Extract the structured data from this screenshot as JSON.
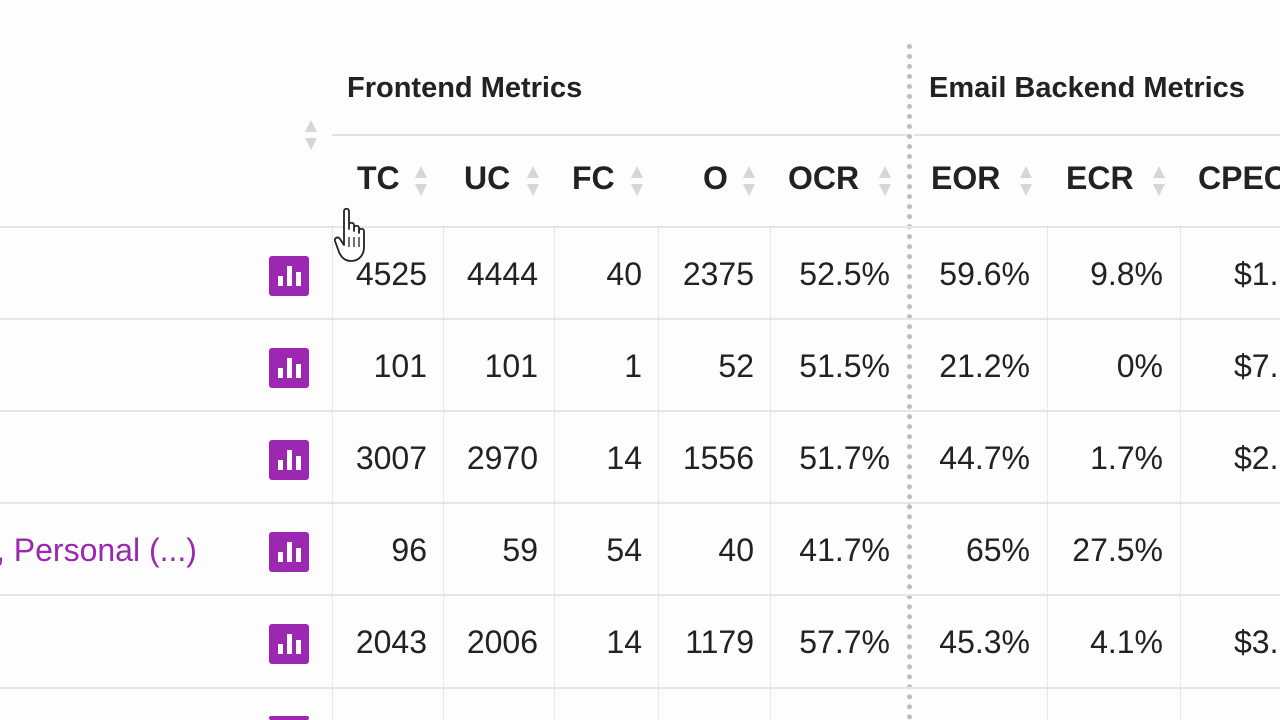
{
  "groups": {
    "frontend": "Frontend Metrics",
    "backend": "Email Backend Metrics"
  },
  "columns": [
    "TC",
    "UC",
    "FC",
    "O",
    "OCR",
    "EOR",
    "ECR",
    "CPEC"
  ],
  "rows": [
    {
      "name": "",
      "TC": "4525",
      "UC": "4444",
      "FC": "40",
      "O": "2375",
      "OCR": "52.5%",
      "EOR": "59.6%",
      "ECR": "9.8%",
      "CPEC": "$1."
    },
    {
      "name": "",
      "TC": "101",
      "UC": "101",
      "FC": "1",
      "O": "52",
      "OCR": "51.5%",
      "EOR": "21.2%",
      "ECR": "0%",
      "CPEC": "$7."
    },
    {
      "name": "",
      "TC": "3007",
      "UC": "2970",
      "FC": "14",
      "O": "1556",
      "OCR": "51.7%",
      "EOR": "44.7%",
      "ECR": "1.7%",
      "CPEC": "$2."
    },
    {
      "name": ", Personal (...)",
      "TC": "96",
      "UC": "59",
      "FC": "54",
      "O": "40",
      "OCR": "41.7%",
      "EOR": "65%",
      "ECR": "27.5%",
      "CPEC": ""
    },
    {
      "name": "",
      "TC": "2043",
      "UC": "2006",
      "FC": "14",
      "O": "1179",
      "OCR": "57.7%",
      "EOR": "45.3%",
      "ECR": "4.1%",
      "CPEC": "$3."
    }
  ],
  "icons": {
    "chart_button": "bar-chart-icon",
    "sort": "sort-icon",
    "cursor": "hand-pointer-icon"
  },
  "colors": {
    "accent": "#9c27b0"
  }
}
